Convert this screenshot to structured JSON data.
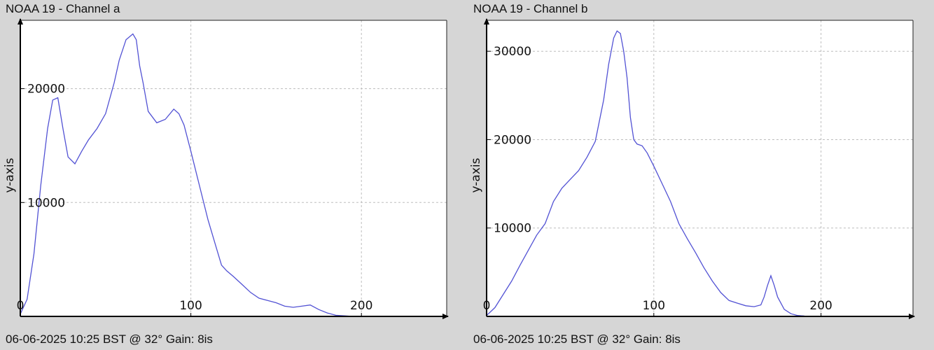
{
  "chart_data": [
    {
      "type": "line",
      "title": "NOAA 19 - Channel a",
      "footer": "06-06-2025 10:25 BST @ 32° Gain: 8is",
      "ylabel": "y-axis",
      "xlabel": "",
      "xlim": [
        0,
        250
      ],
      "ylim": [
        0,
        26000
      ],
      "xticks": [
        0,
        100,
        200
      ],
      "yticks": [
        10000,
        20000
      ],
      "grid": true,
      "line_color": "#5252d4",
      "series": [
        {
          "x": [
            0,
            4,
            8,
            12,
            16,
            19,
            22,
            25,
            28,
            32,
            36,
            40,
            45,
            50,
            55,
            58,
            62,
            66,
            68,
            70,
            72,
            75,
            80,
            85,
            90,
            93,
            96,
            100,
            105,
            110,
            115,
            118,
            121,
            125,
            130,
            135,
            140,
            145,
            150,
            155,
            160,
            165,
            170,
            175,
            180,
            185,
            190,
            195
          ],
          "y": [
            200,
            1500,
            5500,
            11500,
            16500,
            19000,
            19200,
            16500,
            14000,
            13400,
            14500,
            15500,
            16500,
            17800,
            20500,
            22500,
            24300,
            24800,
            24300,
            22000,
            20500,
            18000,
            17000,
            17300,
            18200,
            17800,
            16800,
            14500,
            11500,
            8500,
            6000,
            4500,
            4000,
            3500,
            2800,
            2100,
            1600,
            1400,
            1200,
            900,
            800,
            900,
            1000,
            600,
            300,
            100,
            50,
            0
          ]
        }
      ]
    },
    {
      "type": "line",
      "title": "NOAA 19 - Channel b",
      "footer": "06-06-2025 10:25 BST @ 32° Gain: 8is",
      "ylabel": "y-axis",
      "xlabel": "",
      "xlim": [
        0,
        255
      ],
      "ylim": [
        0,
        33500
      ],
      "xticks": [
        0,
        100,
        200
      ],
      "yticks": [
        10000,
        20000,
        30000
      ],
      "grid": true,
      "line_color": "#5252d4",
      "series": [
        {
          "x": [
            0,
            5,
            10,
            15,
            20,
            25,
            30,
            35,
            40,
            45,
            50,
            55,
            60,
            65,
            70,
            73,
            76,
            78,
            80,
            82,
            84,
            86,
            88,
            90,
            93,
            96,
            100,
            105,
            110,
            115,
            120,
            125,
            130,
            135,
            140,
            145,
            150,
            155,
            160,
            164,
            166,
            168,
            170,
            172,
            174,
            178,
            182,
            186,
            190
          ],
          "y": [
            100,
            1000,
            2500,
            4000,
            5800,
            7500,
            9200,
            10500,
            13000,
            14500,
            15500,
            16500,
            18000,
            19800,
            24500,
            28500,
            31500,
            32300,
            32000,
            30000,
            27000,
            22500,
            20000,
            19500,
            19300,
            18500,
            17000,
            15000,
            13000,
            10500,
            8800,
            7200,
            5500,
            4000,
            2700,
            1800,
            1500,
            1200,
            1100,
            1300,
            2200,
            3500,
            4600,
            3500,
            2200,
            800,
            300,
            100,
            50
          ]
        }
      ]
    }
  ]
}
